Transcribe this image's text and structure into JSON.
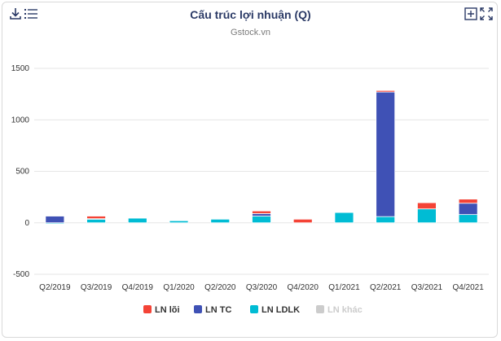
{
  "header": {
    "title": "Cấu trúc lợi nhuận (Q)",
    "subtitle": "Gstock.vn"
  },
  "toolbar": {
    "left_icons": [
      "download-icon",
      "menu-icon"
    ],
    "right_icons": [
      "add-box-icon",
      "fullscreen-icon"
    ]
  },
  "colors": {
    "ln_loi": "#f44336",
    "ln_tc": "#3f51b5",
    "ln_ldlk": "#00bcd4",
    "ln_khac": "#c8c8c8",
    "title": "#2b3a66"
  },
  "chart_data": {
    "type": "bar",
    "stacked": true,
    "title": "Cấu trúc lợi nhuận (Q)",
    "subtitle": "Gstock.vn",
    "categories": [
      "Q2/2019",
      "Q3/2019",
      "Q4/2019",
      "Q1/2020",
      "Q2/2020",
      "Q3/2020",
      "Q4/2020",
      "Q1/2021",
      "Q2/2021",
      "Q3/2021",
      "Q4/2021"
    ],
    "series": [
      {
        "name": "LN lõi",
        "color": "#f44336",
        "values": [
          0,
          25,
          0,
          0,
          0,
          25,
          35,
          5,
          15,
          60,
          40
        ]
      },
      {
        "name": "LN TC",
        "color": "#3f51b5",
        "values": [
          65,
          5,
          0,
          0,
          0,
          25,
          0,
          0,
          1210,
          0,
          110
        ]
      },
      {
        "name": "LN LDLK",
        "color": "#00bcd4",
        "values": [
          -10,
          35,
          45,
          20,
          35,
          65,
          0,
          100,
          60,
          135,
          80
        ]
      },
      {
        "name": "LN khác",
        "color": "#c8c8c8",
        "values": [
          0,
          0,
          0,
          0,
          0,
          5,
          0,
          5,
          5,
          0,
          0
        ],
        "disabled": true
      }
    ],
    "yticks": [
      1500,
      1000,
      500,
      0,
      -500
    ],
    "ylim": [
      -500,
      1500
    ],
    "grid": true,
    "legend_position": "bottom"
  }
}
